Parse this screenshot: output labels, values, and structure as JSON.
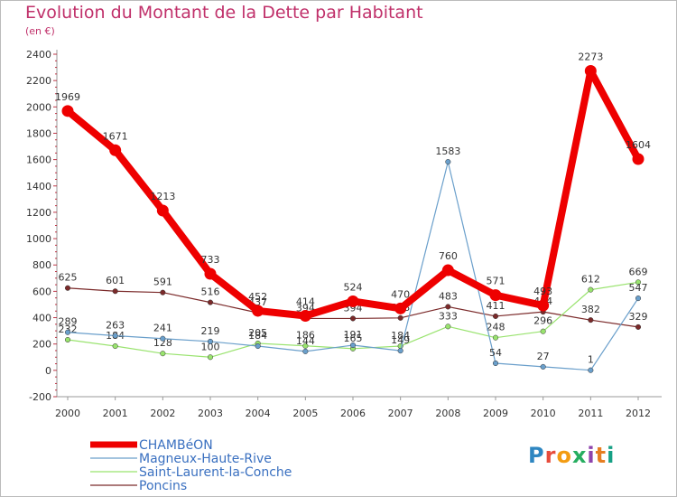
{
  "title": "Evolution du Montant de la Dette par Habitant",
  "unit": "(en €)",
  "logo": {
    "text": "Proxiti",
    "letters": [
      "P",
      "r",
      "o",
      "x",
      "i",
      "t",
      "i"
    ],
    "colors": [
      "#2e86c1",
      "#e74c3c",
      "#f39c12",
      "#27ae60",
      "#8e44ad",
      "#e67e22",
      "#16a085"
    ]
  },
  "chart_data": {
    "type": "line",
    "x": [
      "2000",
      "2001",
      "2002",
      "2003",
      "2004",
      "2005",
      "2006",
      "2007",
      "2008",
      "2009",
      "2010",
      "2011",
      "2012"
    ],
    "ylim": [
      -200,
      2400
    ],
    "yticks": [
      -200,
      0,
      200,
      400,
      600,
      800,
      1000,
      1200,
      1400,
      1600,
      1800,
      2000,
      2200,
      2400
    ],
    "grid": false,
    "legend": "bottom-left",
    "series": [
      {
        "name": "Poncins",
        "color": "#7b2a2a",
        "width": 1.2,
        "marker": 2.8,
        "values": [
          625,
          601,
          591,
          516,
          437,
          394,
          394,
          398,
          483,
          411,
          444,
          382,
          329
        ],
        "labels": [
          "625",
          "601",
          "591",
          "516",
          "437",
          "394",
          "394",
          "398",
          "483",
          "411",
          "444",
          "382",
          "329"
        ]
      },
      {
        "name": "Saint-Laurent-la-Conche",
        "color": "#99e36e",
        "width": 1.2,
        "marker": 2.8,
        "values": [
          232,
          184,
          128,
          100,
          205,
          186,
          165,
          184,
          333,
          248,
          296,
          612,
          669
        ],
        "labels": [
          "232",
          "184",
          "128",
          "100",
          "205",
          "186",
          "165",
          "184",
          "333",
          "248",
          "296",
          "612",
          "669"
        ]
      },
      {
        "name": "Magneux-Haute-Rive",
        "color": "#6a9fcb",
        "width": 1.2,
        "marker": 2.8,
        "values": [
          289,
          263,
          241,
          219,
          184,
          144,
          191,
          149,
          1583,
          54,
          27,
          1,
          547
        ],
        "labels": [
          "289",
          "263",
          "241",
          "219",
          "184",
          "144",
          "191",
          "149",
          "1583",
          "54",
          "27",
          "1",
          "547"
        ]
      },
      {
        "name": "CHAMBéON",
        "color": "#ee0000",
        "width": 8,
        "marker": 6.5,
        "values": [
          1969,
          1671,
          1213,
          733,
          452,
          414,
          524,
          470,
          760,
          571,
          493,
          2273,
          1604
        ],
        "labels": [
          "1969",
          "1671",
          "1213",
          "733",
          "452",
          "414",
          "524",
          "470",
          "760",
          "571",
          "493",
          "2273",
          "1604"
        ]
      }
    ]
  }
}
